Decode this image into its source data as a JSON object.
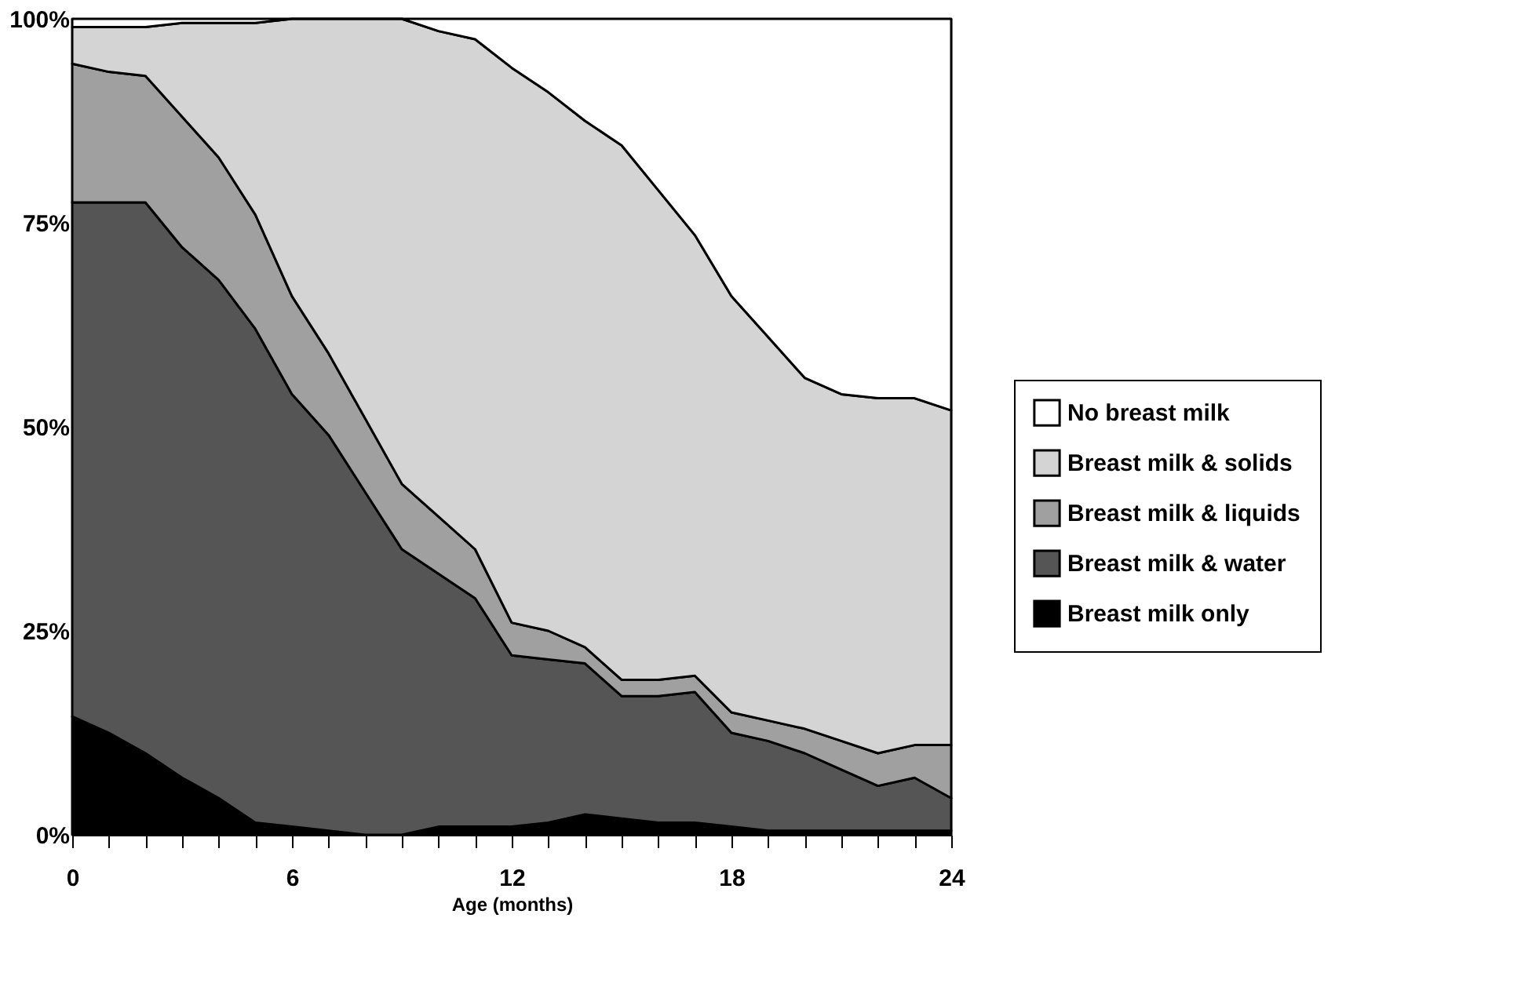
{
  "chart_data": {
    "type": "area",
    "stacked": true,
    "xlabel": "Age (months)",
    "x": [
      0,
      1,
      2,
      3,
      4,
      5,
      6,
      7,
      8,
      9,
      10,
      11,
      12,
      13,
      14,
      15,
      16,
      17,
      18,
      19,
      20,
      21,
      22,
      23,
      24
    ],
    "series": [
      {
        "name": "Breast milk only",
        "color": "#000000",
        "values": [
          14.5,
          12.5,
          10,
          7,
          4.5,
          1.5,
          1,
          0.5,
          0,
          0,
          1,
          1,
          1,
          1.5,
          2.5,
          2,
          1.5,
          1.5,
          1,
          0.5,
          0.5,
          0.5,
          0.5,
          0.5,
          0.5
        ]
      },
      {
        "name": "Breast milk & water",
        "color": "#555555",
        "values": [
          63,
          65,
          67.5,
          65,
          63.5,
          60.5,
          53,
          48.5,
          42,
          35,
          31,
          28,
          21,
          20,
          18.5,
          15,
          15.5,
          16,
          11.5,
          11,
          9.5,
          7.5,
          5.5,
          6.5,
          4
        ]
      },
      {
        "name": "Breast milk & liquids",
        "color": "#a0a0a0",
        "values": [
          17,
          16,
          15.5,
          16,
          15,
          14,
          12,
          10,
          9,
          8,
          7,
          6,
          4,
          3.5,
          2,
          2,
          2,
          2,
          2.5,
          2.5,
          3,
          3.5,
          4,
          4,
          6.5
        ]
      },
      {
        "name": "Breast milk & solids",
        "color": "#d4d4d4",
        "values": [
          4.5,
          5.5,
          6,
          11.5,
          16.5,
          23.5,
          34,
          41,
          49,
          57,
          59.5,
          62.5,
          68,
          66,
          64.5,
          65.5,
          60,
          54,
          51,
          47,
          43,
          42.5,
          43.5,
          42.5,
          41
        ]
      },
      {
        "name": "No breast milk",
        "color": "#ffffff",
        "values": [
          1,
          1,
          1,
          0.5,
          0.5,
          0.5,
          0,
          0,
          0,
          0,
          1.5,
          2.5,
          6,
          9,
          12.5,
          15.5,
          21,
          26.5,
          34,
          39,
          44,
          46,
          46.5,
          46.5,
          48
        ]
      }
    ],
    "xlim": [
      0,
      24
    ],
    "xticks": [
      0,
      {
        "value": 1,
        "label": null
      },
      {
        "value": 2,
        "label": null
      },
      {
        "value": 3,
        "label": null
      },
      {
        "value": 4,
        "label": null
      },
      {
        "value": 5,
        "label": null
      },
      6,
      {
        "value": 7,
        "label": null
      },
      {
        "value": 8,
        "label": null
      },
      {
        "value": 9,
        "label": null
      },
      {
        "value": 10,
        "label": null
      },
      {
        "value": 11,
        "label": null
      },
      12,
      {
        "value": 13,
        "label": null
      },
      {
        "value": 14,
        "label": null
      },
      {
        "value": 15,
        "label": null
      },
      {
        "value": 16,
        "label": null
      },
      {
        "value": 17,
        "label": null
      },
      18,
      {
        "value": 19,
        "label": null
      },
      {
        "value": 20,
        "label": null
      },
      {
        "value": 21,
        "label": null
      },
      {
        "value": 22,
        "label": null
      },
      {
        "value": 23,
        "label": null
      },
      24
    ],
    "ylim": [
      0,
      100
    ],
    "yticks": [
      {
        "value": 0,
        "label": "0%"
      },
      {
        "value": 25,
        "label": "25%"
      },
      {
        "value": 50,
        "label": "50%"
      },
      {
        "value": 75,
        "label": "75%"
      },
      {
        "value": 100,
        "label": "100%"
      }
    ],
    "legend": "right"
  }
}
